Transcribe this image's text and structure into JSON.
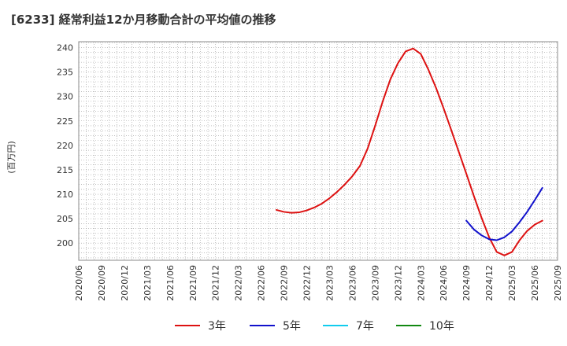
{
  "chart_data": {
    "type": "line",
    "title": "[6233]  経常利益12か月移動合計の平均値の推移",
    "xlabel": "",
    "ylabel": "(百万円)",
    "ylim": [
      196.5,
      241.2
    ],
    "yticks": [
      200,
      205,
      210,
      215,
      220,
      225,
      230,
      235,
      240
    ],
    "x_tick_labels": [
      "2020/06",
      "2020/09",
      "2020/12",
      "2021/03",
      "2021/06",
      "2021/09",
      "2021/12",
      "2022/03",
      "2022/06",
      "2022/09",
      "2022/12",
      "2023/03",
      "2023/06",
      "2023/09",
      "2023/12",
      "2024/03",
      "2024/06",
      "2024/09",
      "2024/12",
      "2025/03",
      "2025/06",
      "2025/09"
    ],
    "grid": true,
    "legend_position": "bottom",
    "series": [
      {
        "name": "3年",
        "color": "#dd1111",
        "points": [
          [
            "2022/08",
            206.8
          ],
          [
            "2022/09",
            206.4
          ],
          [
            "2022/10",
            206.2
          ],
          [
            "2022/11",
            206.3
          ],
          [
            "2022/12",
            206.7
          ],
          [
            "2023/01",
            207.3
          ],
          [
            "2023/02",
            208.1
          ],
          [
            "2023/03",
            209.2
          ],
          [
            "2023/04",
            210.5
          ],
          [
            "2023/05",
            212.0
          ],
          [
            "2023/06",
            213.7
          ],
          [
            "2023/07",
            215.8
          ],
          [
            "2023/08",
            219.3
          ],
          [
            "2023/09",
            224.0
          ],
          [
            "2023/10",
            229.0
          ],
          [
            "2023/11",
            233.5
          ],
          [
            "2023/12",
            236.8
          ],
          [
            "2024/01",
            239.2
          ],
          [
            "2024/02",
            239.8
          ],
          [
            "2024/03",
            238.7
          ],
          [
            "2024/04",
            235.5
          ],
          [
            "2024/05",
            231.8
          ],
          [
            "2024/06",
            227.6
          ],
          [
            "2024/07",
            223.2
          ],
          [
            "2024/08",
            218.7
          ],
          [
            "2024/09",
            214.2
          ],
          [
            "2024/10",
            209.6
          ],
          [
            "2024/11",
            205.2
          ],
          [
            "2024/12",
            201.2
          ],
          [
            "2025/01",
            198.2
          ],
          [
            "2025/02",
            197.5
          ],
          [
            "2025/03",
            198.2
          ],
          [
            "2025/04",
            200.6
          ],
          [
            "2025/05",
            202.5
          ],
          [
            "2025/06",
            203.8
          ],
          [
            "2025/07",
            204.6
          ]
        ]
      },
      {
        "name": "5年",
        "color": "#1111cc",
        "points": [
          [
            "2024/09",
            204.6
          ],
          [
            "2024/10",
            202.8
          ],
          [
            "2024/11",
            201.6
          ],
          [
            "2024/12",
            200.8
          ],
          [
            "2025/01",
            200.6
          ],
          [
            "2025/02",
            201.2
          ],
          [
            "2025/03",
            202.4
          ],
          [
            "2025/04",
            204.3
          ],
          [
            "2025/05",
            206.4
          ],
          [
            "2025/06",
            208.8
          ],
          [
            "2025/07",
            211.3
          ]
        ]
      },
      {
        "name": "7年",
        "color": "#11ccee",
        "points": []
      },
      {
        "name": "10年",
        "color": "#118811",
        "points": []
      }
    ]
  }
}
